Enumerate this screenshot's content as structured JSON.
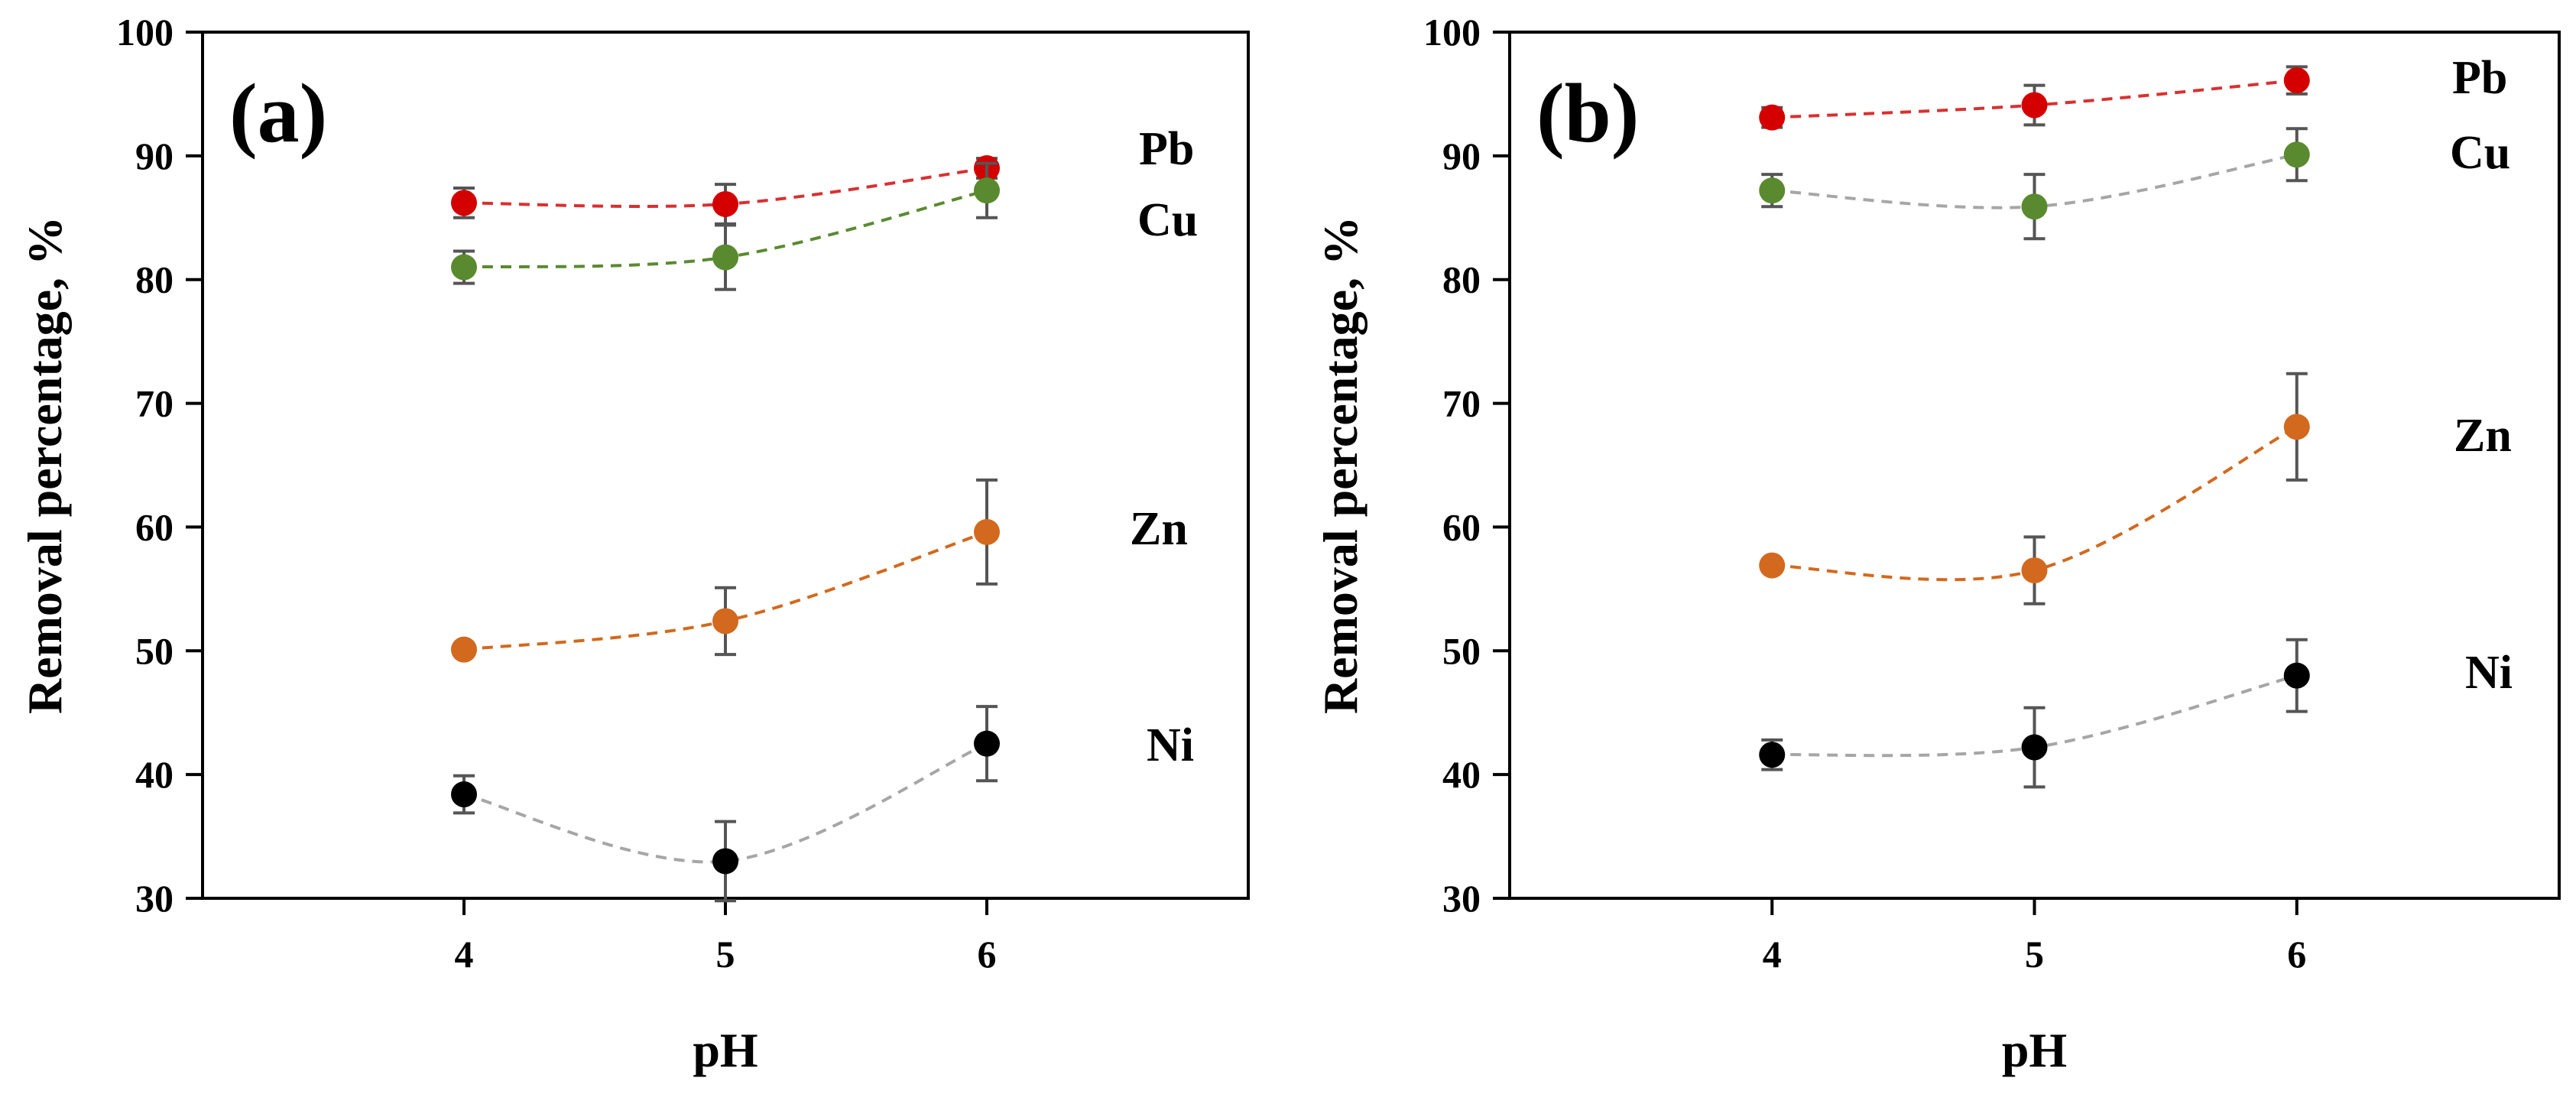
{
  "chart_data": [
    {
      "type": "line",
      "panel_label": "(a)",
      "xlabel": "pH",
      "ylabel": "Removal percentage, %",
      "x": [
        4,
        5,
        6
      ],
      "xticks": [
        "4",
        "5",
        "6"
      ],
      "xlim": [
        3,
        7
      ],
      "ylim": [
        30,
        100
      ],
      "yticks": [
        "30",
        "40",
        "50",
        "60",
        "70",
        "80",
        "90",
        "100"
      ],
      "grid": false,
      "series": [
        {
          "name": "Pb",
          "color": "#d40000",
          "line_color": "#d93030",
          "values": [
            86.2,
            86.1,
            89.0
          ],
          "errors": [
            1.2,
            1.6,
            0.8
          ]
        },
        {
          "name": "Cu",
          "color": "#5a8a30",
          "line_color": "#5a8a30",
          "values": [
            81.0,
            81.8,
            87.2
          ],
          "errors": [
            1.3,
            2.6,
            2.2
          ]
        },
        {
          "name": "Zn",
          "color": "#d2691e",
          "line_color": "#d2691e",
          "values": [
            50.1,
            52.4,
            59.6
          ],
          "errors": [
            0.3,
            2.7,
            4.2
          ]
        },
        {
          "name": "Ni",
          "color": "#000000",
          "line_color": "#a6a6a6",
          "values": [
            38.4,
            33.0,
            42.5
          ],
          "errors": [
            1.5,
            3.2,
            3.0
          ]
        }
      ]
    },
    {
      "type": "line",
      "panel_label": "(b)",
      "xlabel": "pH",
      "ylabel": "Removal percentage, %",
      "x": [
        4,
        5,
        6
      ],
      "xticks": [
        "4",
        "5",
        "6"
      ],
      "xlim": [
        3,
        7
      ],
      "ylim": [
        30,
        100
      ],
      "yticks": [
        "30",
        "40",
        "50",
        "60",
        "70",
        "80",
        "90",
        "100"
      ],
      "grid": false,
      "series": [
        {
          "name": "Pb",
          "color": "#d40000",
          "line_color": "#d93030",
          "values": [
            93.1,
            94.1,
            96.1
          ],
          "errors": [
            0.8,
            1.6,
            1.1
          ]
        },
        {
          "name": "Cu",
          "color": "#5a8a30",
          "line_color": "#a6a6a6",
          "values": [
            87.2,
            85.9,
            90.1
          ],
          "errors": [
            1.3,
            2.6,
            2.1
          ]
        },
        {
          "name": "Zn",
          "color": "#d2691e",
          "line_color": "#d2691e",
          "values": [
            56.9,
            56.5,
            68.1
          ],
          "errors": [
            0.3,
            2.7,
            4.3
          ]
        },
        {
          "name": "Ni",
          "color": "#000000",
          "line_color": "#a6a6a6",
          "values": [
            41.6,
            42.2,
            48.0
          ],
          "errors": [
            1.2,
            3.2,
            2.9
          ]
        }
      ]
    }
  ]
}
